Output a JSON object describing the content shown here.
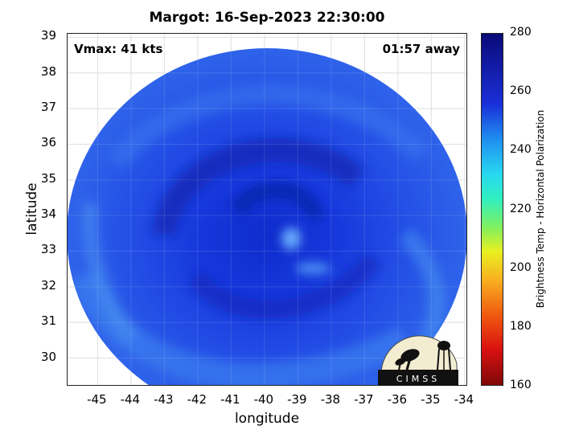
{
  "title": "Margot: 16-Sep-2023 22:30:00",
  "vmax_label": "Vmax: 41 kts",
  "time_label": "01:57 away",
  "map": {
    "xlabel": "longitude",
    "ylabel": "latitude",
    "x_range": [
      -45.9,
      -33.9
    ],
    "y_range": [
      29.2,
      39.1
    ],
    "x_ticks": [
      "-45",
      "-44",
      "-43",
      "-42",
      "-41",
      "-40",
      "-39",
      "-38",
      "-37",
      "-36",
      "-35",
      "-34"
    ],
    "y_ticks": [
      "39",
      "38",
      "37",
      "36",
      "35",
      "34",
      "33",
      "32",
      "31",
      "30"
    ],
    "grid": true,
    "field": "Brightness Temp - Horizontal Polarization",
    "storm_center": [
      -40.2,
      34.2
    ]
  },
  "colorbar": {
    "label": "Brightness Temp - Horizontal Polarization",
    "ticks": [
      "280",
      "260",
      "240",
      "220",
      "200",
      "180",
      "160"
    ],
    "range": [
      160,
      280
    ]
  },
  "logo": {
    "text": "CIMSS"
  }
}
